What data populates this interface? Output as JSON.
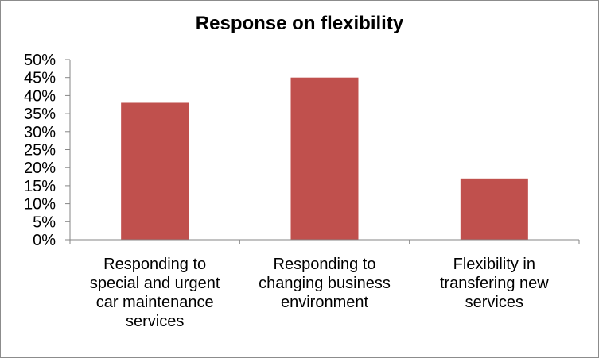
{
  "chart_data": {
    "type": "bar",
    "title": "Response on flexibility",
    "xlabel": "",
    "ylabel": "",
    "categories": [
      [
        "Responding to",
        "special and urgent",
        "car maintenance",
        "services"
      ],
      [
        "Responding to",
        "changing business",
        "environment"
      ],
      [
        "Flexibility in",
        "transfering new",
        "services"
      ]
    ],
    "values": [
      0.38,
      0.45,
      0.17
    ],
    "ylim": [
      0,
      0.5
    ],
    "yticks": [
      "0%",
      "5%",
      "10%",
      "15%",
      "20%",
      "25%",
      "30%",
      "35%",
      "40%",
      "45%",
      "50%"
    ],
    "grid": false,
    "legend": "none",
    "bar_color": "#C0504D"
  }
}
